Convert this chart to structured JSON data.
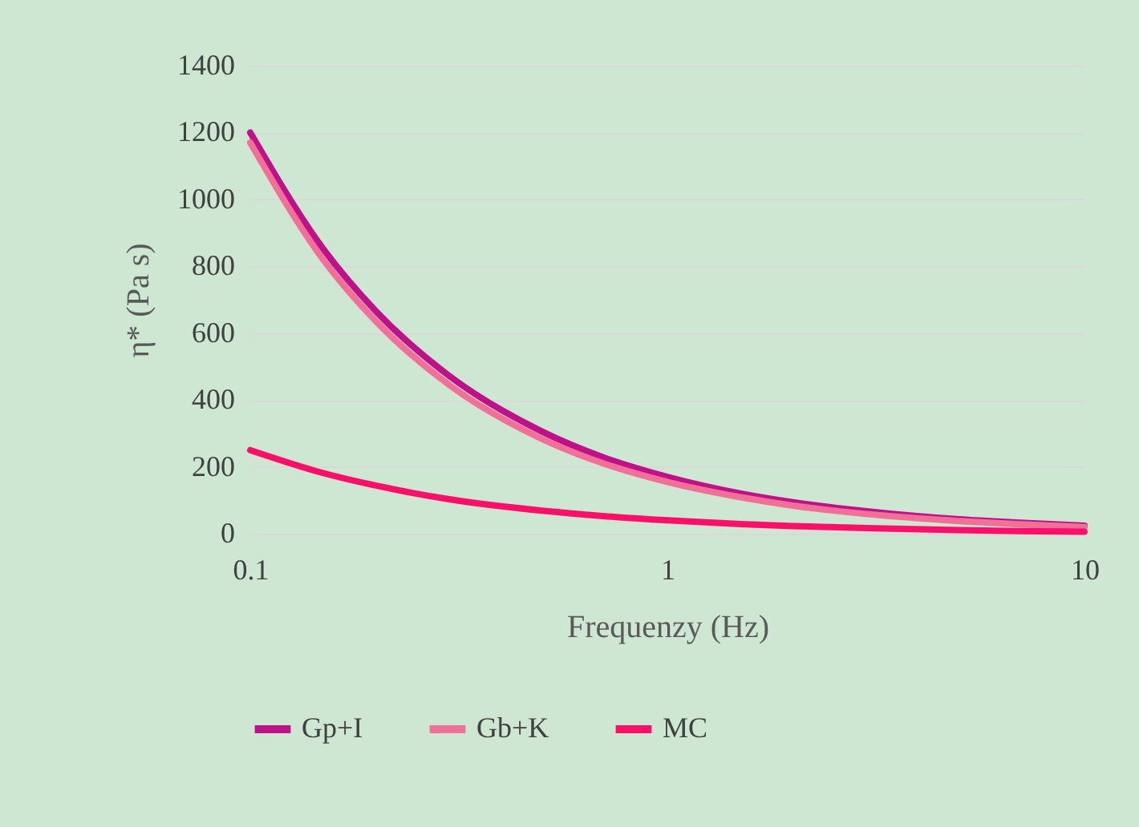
{
  "chart_data": {
    "type": "line",
    "xlabel": "Frequenzy (Hz)",
    "ylabel": "η* (Pa s)",
    "log": "x",
    "x": [
      0.1,
      0.15,
      0.2,
      0.3,
      0.5,
      0.7,
      1,
      1.5,
      2,
      3,
      5,
      7,
      10
    ],
    "series": [
      {
        "name": "Gp+I",
        "color": "#c0108a",
        "values": [
          1200,
          850,
          666,
          472,
          306,
          229,
          170,
          120,
          94,
          67,
          43,
          33,
          24
        ]
      },
      {
        "name": "Gb+K",
        "color": "#f07098",
        "values": [
          1170,
          818,
          636,
          445,
          284,
          211,
          155,
          109,
          84,
          59,
          38,
          28,
          20
        ]
      },
      {
        "name": "MC",
        "color": "#ff1068",
        "values": [
          250,
          181,
          144,
          103,
          69,
          53,
          40,
          29,
          23,
          17,
          11,
          8,
          6
        ]
      }
    ],
    "xlim": [
      0.1,
      10
    ],
    "xticks": [
      0.1,
      1,
      10
    ],
    "ylim": [
      0,
      1400
    ],
    "yticks": [
      0,
      200,
      400,
      600,
      800,
      1000,
      1200,
      1400
    ],
    "grid": "y",
    "legend": "bottom",
    "marker": "none",
    "line_style": "solid"
  }
}
